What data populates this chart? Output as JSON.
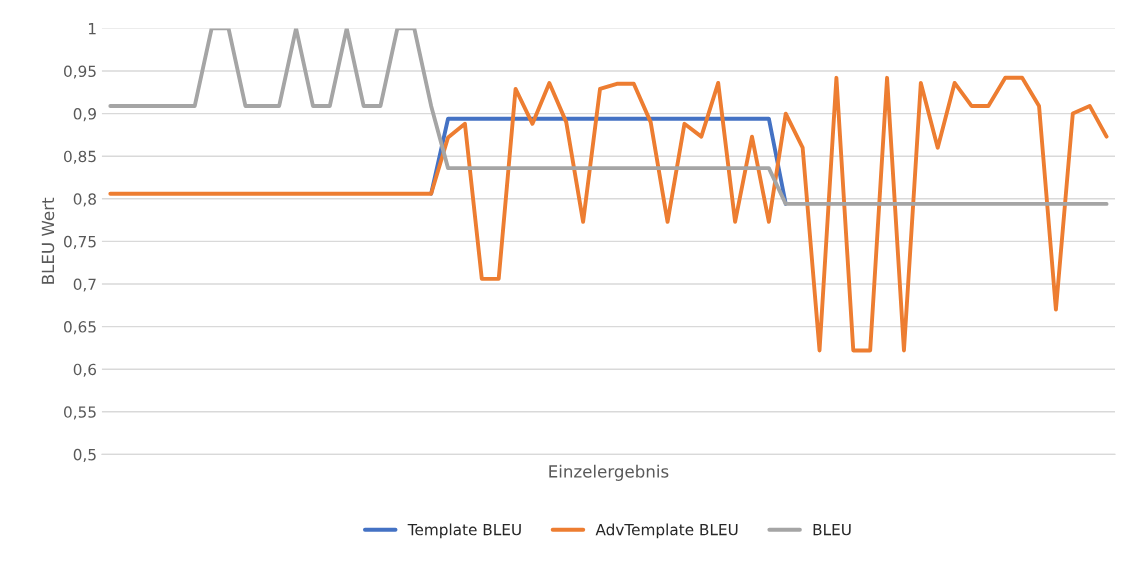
{
  "chart_data": {
    "type": "line",
    "xlabel": "Einzelergebnis",
    "ylabel": "BLEU Wert",
    "categories": [
      null,
      null,
      null,
      null,
      null,
      null,
      null,
      null,
      null,
      null,
      null,
      null,
      null,
      null,
      null,
      null,
      null,
      null,
      null,
      null,
      null,
      null,
      null,
      null,
      null,
      null,
      null,
      null,
      null,
      null,
      null,
      null,
      null,
      null,
      null,
      null,
      null,
      null,
      null,
      null,
      null,
      null,
      null,
      null,
      null,
      null,
      null,
      null,
      null,
      null,
      null,
      null,
      null,
      null,
      null,
      null,
      null,
      null,
      null,
      null
    ],
    "series": [
      {
        "name": "Template BLEU",
        "color": "#4472c4",
        "values": [
          null,
          null,
          null,
          null,
          null,
          null,
          null,
          null,
          null,
          null,
          null,
          null,
          null,
          null,
          null,
          null,
          null,
          null,
          null,
          0.806,
          0.894,
          0.894,
          0.894,
          0.894,
          0.894,
          0.894,
          0.894,
          0.894,
          0.894,
          0.894,
          0.894,
          0.894,
          0.894,
          0.894,
          0.894,
          0.894,
          0.894,
          0.894,
          0.894,
          0.894,
          0.794,
          null,
          null,
          null,
          null,
          null,
          null,
          null,
          null,
          null,
          null,
          null,
          null,
          null,
          null,
          null,
          null,
          null,
          null,
          null
        ]
      },
      {
        "name": "AdvTemplate BLEU",
        "color": "#ed7d31",
        "values": [
          0.806,
          0.806,
          0.806,
          0.806,
          0.806,
          0.806,
          0.806,
          0.806,
          0.806,
          0.806,
          0.806,
          0.806,
          0.806,
          0.806,
          0.806,
          0.806,
          0.806,
          0.806,
          0.806,
          0.806,
          0.872,
          0.888,
          0.706,
          0.706,
          0.929,
          0.888,
          0.936,
          0.89,
          0.773,
          0.929,
          0.935,
          0.935,
          0.89,
          0.773,
          0.888,
          0.873,
          0.936,
          0.773,
          0.873,
          0.773,
          0.9,
          0.86,
          0.622,
          0.942,
          0.622,
          0.622,
          0.942,
          0.622,
          0.936,
          0.86,
          0.936,
          0.909,
          0.909,
          0.942,
          0.942,
          0.909,
          0.67,
          0.9,
          0.909,
          0.873
        ]
      },
      {
        "name": "BLEU",
        "color": "#a5a5a5",
        "values": [
          0.909,
          0.909,
          0.909,
          0.909,
          0.909,
          0.909,
          1,
          1,
          0.909,
          0.909,
          0.909,
          1,
          0.909,
          0.909,
          1,
          0.909,
          0.909,
          1,
          1,
          0.909,
          0.836,
          0.836,
          0.836,
          0.836,
          0.836,
          0.836,
          0.836,
          0.836,
          0.836,
          0.836,
          0.836,
          0.836,
          0.836,
          0.836,
          0.836,
          0.836,
          0.836,
          0.836,
          0.836,
          0.836,
          0.794,
          0.794,
          0.794,
          0.794,
          0.794,
          0.794,
          0.794,
          0.794,
          0.794,
          0.794,
          0.794,
          0.794,
          0.794,
          0.794,
          0.794,
          0.794,
          0.794,
          0.794,
          0.794,
          0.794
        ]
      }
    ],
    "ylim": [
      0.5,
      1
    ],
    "yticks": [
      {
        "value": 0.5,
        "label": "0,5"
      },
      {
        "value": 0.55,
        "label": "0,55"
      },
      {
        "value": 0.6,
        "label": "0,6"
      },
      {
        "value": 0.65,
        "label": "0,65"
      },
      {
        "value": 0.7,
        "label": "0,7"
      },
      {
        "value": 0.75,
        "label": "0,75"
      },
      {
        "value": 0.8,
        "label": "0,8"
      },
      {
        "value": 0.85,
        "label": "0,85"
      },
      {
        "value": 0.9,
        "label": "0,9"
      },
      {
        "value": 0.95,
        "label": "0,95"
      },
      {
        "value": 1,
        "label": "1"
      }
    ],
    "grid": "y",
    "legend": "bottom",
    "marker": "none",
    "line_style": "solid"
  }
}
